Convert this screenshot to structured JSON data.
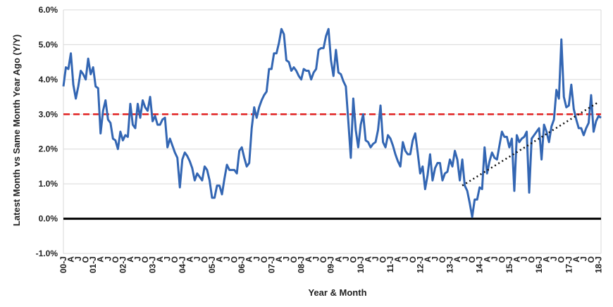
{
  "chart_data": {
    "type": "line",
    "title": "",
    "xlabel": "Year & Month",
    "ylabel": "Latest Month vs Same Month Year Ago (Y/Y)",
    "ylim": [
      -0.01,
      0.06
    ],
    "y_ticks": [
      -0.01,
      0.0,
      0.01,
      0.02,
      0.03,
      0.04,
      0.05,
      0.06
    ],
    "y_tick_labels": [
      "-1.0%",
      "0.0%",
      "1.0%",
      "2.0%",
      "3.0%",
      "4.0%",
      "5.0%",
      "6.0%"
    ],
    "x_tick_labels": [
      "00-J",
      "A",
      "J",
      "O",
      "01-J",
      "A",
      "J",
      "O",
      "02-J",
      "A",
      "J",
      "O",
      "03-J",
      "A",
      "J",
      "O",
      "04-J",
      "A",
      "J",
      "O",
      "05-J",
      "A",
      "J",
      "O",
      "06-J",
      "A",
      "J",
      "O",
      "07-J",
      "A",
      "J",
      "O",
      "08-J",
      "A",
      "J",
      "O",
      "09-J",
      "A",
      "J",
      "O",
      "10-J",
      "A",
      "J",
      "O",
      "11-J",
      "A",
      "J",
      "O",
      "12-J",
      "A",
      "J",
      "O",
      "13-J",
      "A",
      "J",
      "O",
      "14-J",
      "A",
      "J",
      "O",
      "15-J",
      "A",
      "J",
      "O",
      "16-J",
      "A",
      "J",
      "O",
      "17-J",
      "A",
      "J",
      "O",
      "18-J"
    ],
    "grid": true,
    "series": [
      {
        "name": "",
        "color": "#3366b3",
        "x_start": "2000-01",
        "values": [
          0.038,
          0.0435,
          0.043,
          0.0475,
          0.0385,
          0.0345,
          0.038,
          0.0425,
          0.0415,
          0.04,
          0.046,
          0.0415,
          0.0435,
          0.038,
          0.0375,
          0.0245,
          0.031,
          0.034,
          0.0285,
          0.0275,
          0.023,
          0.0225,
          0.02,
          0.025,
          0.0225,
          0.024,
          0.0235,
          0.033,
          0.027,
          0.026,
          0.033,
          0.029,
          0.034,
          0.032,
          0.031,
          0.035,
          0.028,
          0.0295,
          0.027,
          0.027,
          0.0285,
          0.029,
          0.0205,
          0.023,
          0.021,
          0.019,
          0.0175,
          0.009,
          0.017,
          0.019,
          0.018,
          0.0165,
          0.0145,
          0.011,
          0.013,
          0.012,
          0.011,
          0.015,
          0.014,
          0.011,
          0.006,
          0.006,
          0.0095,
          0.0095,
          0.007,
          0.0115,
          0.0155,
          0.014,
          0.014,
          0.014,
          0.013,
          0.0195,
          0.0205,
          0.0175,
          0.015,
          0.016,
          0.026,
          0.032,
          0.029,
          0.032,
          0.034,
          0.0355,
          0.0365,
          0.043,
          0.043,
          0.0475,
          0.0475,
          0.0505,
          0.0545,
          0.053,
          0.0455,
          0.045,
          0.0425,
          0.0435,
          0.0425,
          0.041,
          0.04,
          0.043,
          0.0425,
          0.0425,
          0.04,
          0.042,
          0.043,
          0.0485,
          0.049,
          0.049,
          0.0525,
          0.0545,
          0.0455,
          0.041,
          0.0485,
          0.042,
          0.0415,
          0.0395,
          0.038,
          0.028,
          0.0175,
          0.0345,
          0.0255,
          0.0205,
          0.027,
          0.03,
          0.0225,
          0.022,
          0.0205,
          0.0215,
          0.022,
          0.0255,
          0.0325,
          0.022,
          0.0205,
          0.024,
          0.023,
          0.021,
          0.0185,
          0.0165,
          0.015,
          0.022,
          0.0195,
          0.0185,
          0.0185,
          0.0225,
          0.0245,
          0.019,
          0.013,
          0.015,
          0.0085,
          0.0125,
          0.0185,
          0.011,
          0.0145,
          0.016,
          0.016,
          0.011,
          0.013,
          0.0135,
          0.017,
          0.015,
          0.0195,
          0.017,
          0.011,
          0.017,
          0.0095,
          0.008,
          0.0045,
          0.0005,
          0.0055,
          0.0055,
          0.009,
          0.0085,
          0.0205,
          0.013,
          0.0165,
          0.019,
          0.0175,
          0.017,
          0.021,
          0.025,
          0.0235,
          0.0235,
          0.0205,
          0.023,
          0.008,
          0.024,
          0.022,
          0.023,
          0.0235,
          0.025,
          0.0075,
          0.023,
          0.024,
          0.025,
          0.026,
          0.017,
          0.027,
          0.025,
          0.022,
          0.0265,
          0.0285,
          0.037,
          0.0345,
          0.0515,
          0.035,
          0.032,
          0.0325,
          0.0385,
          0.0315,
          0.0285,
          0.026,
          0.026,
          0.024,
          0.026,
          0.0275,
          0.0355,
          0.025,
          0.028,
          0.0295,
          0.029
        ]
      }
    ],
    "reference_lines": [
      {
        "kind": "target",
        "value": 0.03,
        "color": "#e02020",
        "style": "dashed"
      },
      {
        "kind": "zero",
        "value": 0.0,
        "color": "#000000",
        "style": "solid"
      }
    ],
    "trend_line": {
      "color": "#111111",
      "style": "dotted",
      "start": {
        "x": "2013-06",
        "y": 0.0095
      },
      "end": {
        "x": "2018-01",
        "y": 0.0335
      }
    }
  }
}
